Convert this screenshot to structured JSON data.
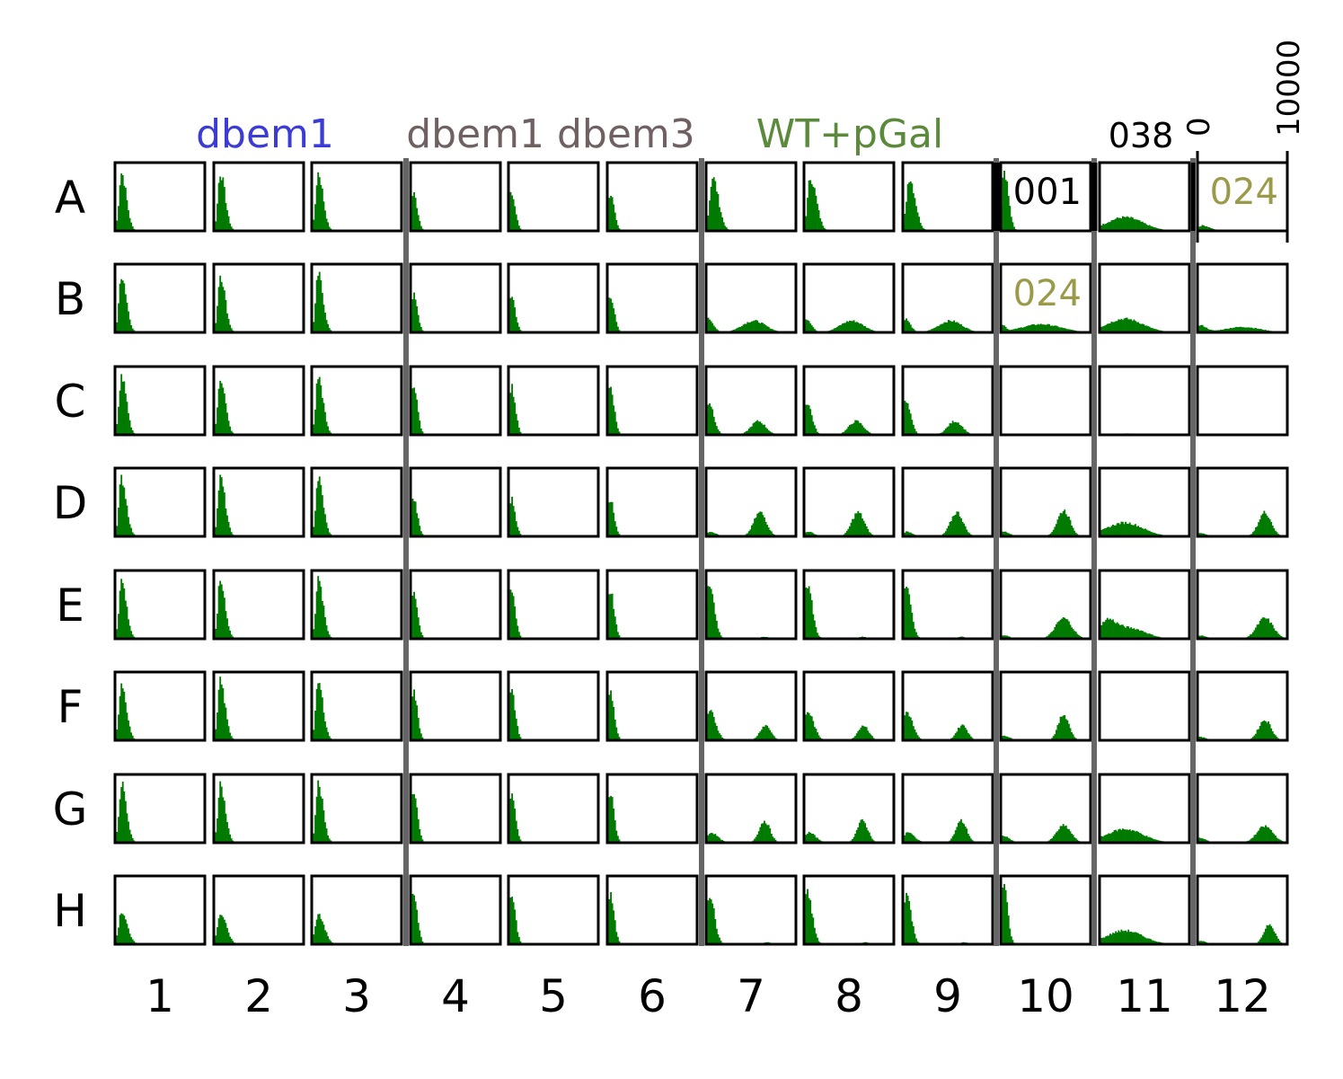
{
  "chart_data": {
    "type": "histogram-grid",
    "rows": [
      "A",
      "B",
      "C",
      "D",
      "E",
      "F",
      "G",
      "H"
    ],
    "columns": [
      "1",
      "2",
      "3",
      "4",
      "5",
      "6",
      "7",
      "8",
      "9",
      "10",
      "11",
      "12"
    ],
    "x_axis": {
      "min_label": "0",
      "max_label": "10000",
      "xlim": [
        0,
        10000
      ]
    },
    "group_labels": [
      {
        "text": "dbem1",
        "color": "#3b3bd6",
        "columns": [
          "1",
          "2",
          "3"
        ]
      },
      {
        "text": "dbem1 dbem3",
        "color": "#6f6161",
        "columns": [
          "4",
          "5",
          "6"
        ]
      },
      {
        "text": "WT+pGal",
        "color": "#5b8a3c",
        "columns": [
          "7",
          "8",
          "9"
        ]
      },
      {
        "text": "038",
        "color": "#000000",
        "columns": [
          "11"
        ]
      }
    ],
    "well_annotations": [
      {
        "well": "A10",
        "text": "001",
        "color": "#000000"
      },
      {
        "well": "A12",
        "text": "024",
        "color": "#9a9a48"
      },
      {
        "well": "B10",
        "text": "024",
        "color": "#9a9a48"
      }
    ],
    "bar_color": "#007a00",
    "separator_color": "#666666",
    "profiles_note_units": "component = [center in x units, spread in x units, relative height 0-1]",
    "profiles": {
      "n1": [
        [
          700,
          250,
          0.85
        ]
      ],
      "n1h": [
        [
          700,
          300,
          0.45
        ]
      ],
      "n4": [
        [
          300,
          200,
          0.55
        ]
      ],
      "n4c": [
        [
          300,
          200,
          0.72
        ]
      ],
      "a7": [
        [
          700,
          300,
          0.78
        ]
      ],
      "b7": [
        [
          250,
          250,
          0.2
        ],
        [
          5300,
          1300,
          0.17
        ]
      ],
      "c7": [
        [
          300,
          250,
          0.48
        ],
        [
          5800,
          800,
          0.2
        ]
      ],
      "d7": [
        [
          400,
          300,
          0.07
        ],
        [
          6000,
          700,
          0.35
        ]
      ],
      "e7": [
        [
          350,
          250,
          0.8
        ],
        [
          6500,
          500,
          0.03
        ]
      ],
      "f7": [
        [
          400,
          300,
          0.42
        ],
        [
          6600,
          600,
          0.22
        ]
      ],
      "g7": [
        [
          500,
          350,
          0.15
        ],
        [
          6500,
          600,
          0.32
        ]
      ],
      "h7": [
        [
          350,
          250,
          0.75
        ],
        [
          6800,
          400,
          0.03
        ]
      ],
      "a10": [
        [
          350,
          220,
          0.9
        ]
      ],
      "b10": [
        [
          200,
          150,
          0.1
        ],
        [
          4500,
          2200,
          0.12
        ]
      ],
      "empty": [],
      "d10": [
        [
          300,
          300,
          0.07
        ],
        [
          7000,
          700,
          0.38
        ]
      ],
      "e10": [
        [
          300,
          300,
          0.05
        ],
        [
          7000,
          900,
          0.3
        ]
      ],
      "f10": [
        [
          300,
          300,
          0.07
        ],
        [
          7000,
          600,
          0.38
        ]
      ],
      "g10": [
        [
          300,
          300,
          0.1
        ],
        [
          7000,
          800,
          0.25
        ]
      ],
      "h10": [
        [
          300,
          200,
          0.9
        ]
      ],
      "pl": [
        [
          2800,
          2000,
          0.2
        ]
      ],
      "pl_c": [
        [
          3000,
          2000,
          0.02
        ]
      ],
      "pl_e": [
        [
          700,
          500,
          0.25
        ],
        [
          3500,
          1700,
          0.15
        ]
      ],
      "a12": [
        [
          500,
          400,
          0.08
        ]
      ],
      "b12": [
        [
          300,
          300,
          0.1
        ],
        [
          5000,
          2000,
          0.08
        ]
      ],
      "d12": [
        [
          300,
          300,
          0.05
        ],
        [
          7500,
          700,
          0.35
        ]
      ],
      "e12": [
        [
          300,
          300,
          0.05
        ],
        [
          7500,
          900,
          0.3
        ]
      ],
      "f12": [
        [
          300,
          300,
          0.05
        ],
        [
          7500,
          700,
          0.3
        ]
      ],
      "g12": [
        [
          300,
          300,
          0.07
        ],
        [
          7500,
          900,
          0.24
        ]
      ],
      "h12": [
        [
          300,
          300,
          0.05
        ],
        [
          8000,
          600,
          0.3
        ]
      ]
    },
    "wells": [
      [
        "n1",
        "n1",
        "n1",
        "n4",
        "n4",
        "n4",
        "a7",
        "a7",
        "a7",
        "a10",
        "pl",
        "a12"
      ],
      [
        "n1",
        "n1",
        "n1",
        "n4",
        "n4",
        "n4",
        "b7",
        "b7",
        "b7",
        "b10",
        "pl",
        "b12"
      ],
      [
        "n1",
        "n1",
        "n1",
        "n4c",
        "n4c",
        "n4c",
        "c7",
        "c7",
        "c7",
        "empty",
        "pl_c",
        "empty"
      ],
      [
        "n1",
        "n1",
        "n1",
        "n4",
        "n4",
        "n4",
        "d7",
        "d7",
        "d7",
        "d10",
        "pl",
        "d12"
      ],
      [
        "n1",
        "n1",
        "n1",
        "n4c",
        "n4c",
        "n4c",
        "e7",
        "e7",
        "e7",
        "e10",
        "pl_e",
        "e12"
      ],
      [
        "n1",
        "n1",
        "n1",
        "n4c",
        "n4c",
        "n4c",
        "f7",
        "f7",
        "f7",
        "f10",
        "empty",
        "f12"
      ],
      [
        "n1",
        "n1",
        "n1",
        "n4c",
        "n4c",
        "n4c",
        "g7",
        "g7",
        "g7",
        "g10",
        "pl",
        "g12"
      ],
      [
        "n1h",
        "n1h",
        "n1h",
        "n4c",
        "n4c",
        "n4c",
        "h7",
        "h7",
        "h7",
        "h10",
        "pl",
        "h12"
      ]
    ]
  }
}
